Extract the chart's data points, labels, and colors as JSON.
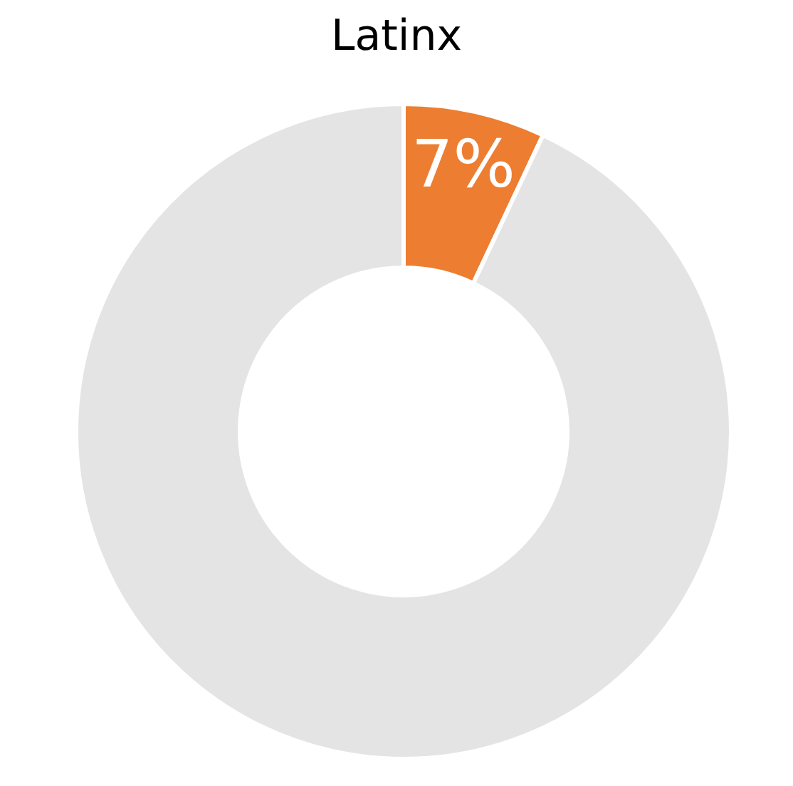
{
  "chart_data": {
    "type": "donut",
    "title": "Latinx",
    "categories": [
      null,
      null
    ],
    "values": [
      7,
      93
    ],
    "colors": [
      "#ed7d31",
      "#e4e4e4"
    ],
    "value_labels": [
      "7%",
      null
    ]
  }
}
